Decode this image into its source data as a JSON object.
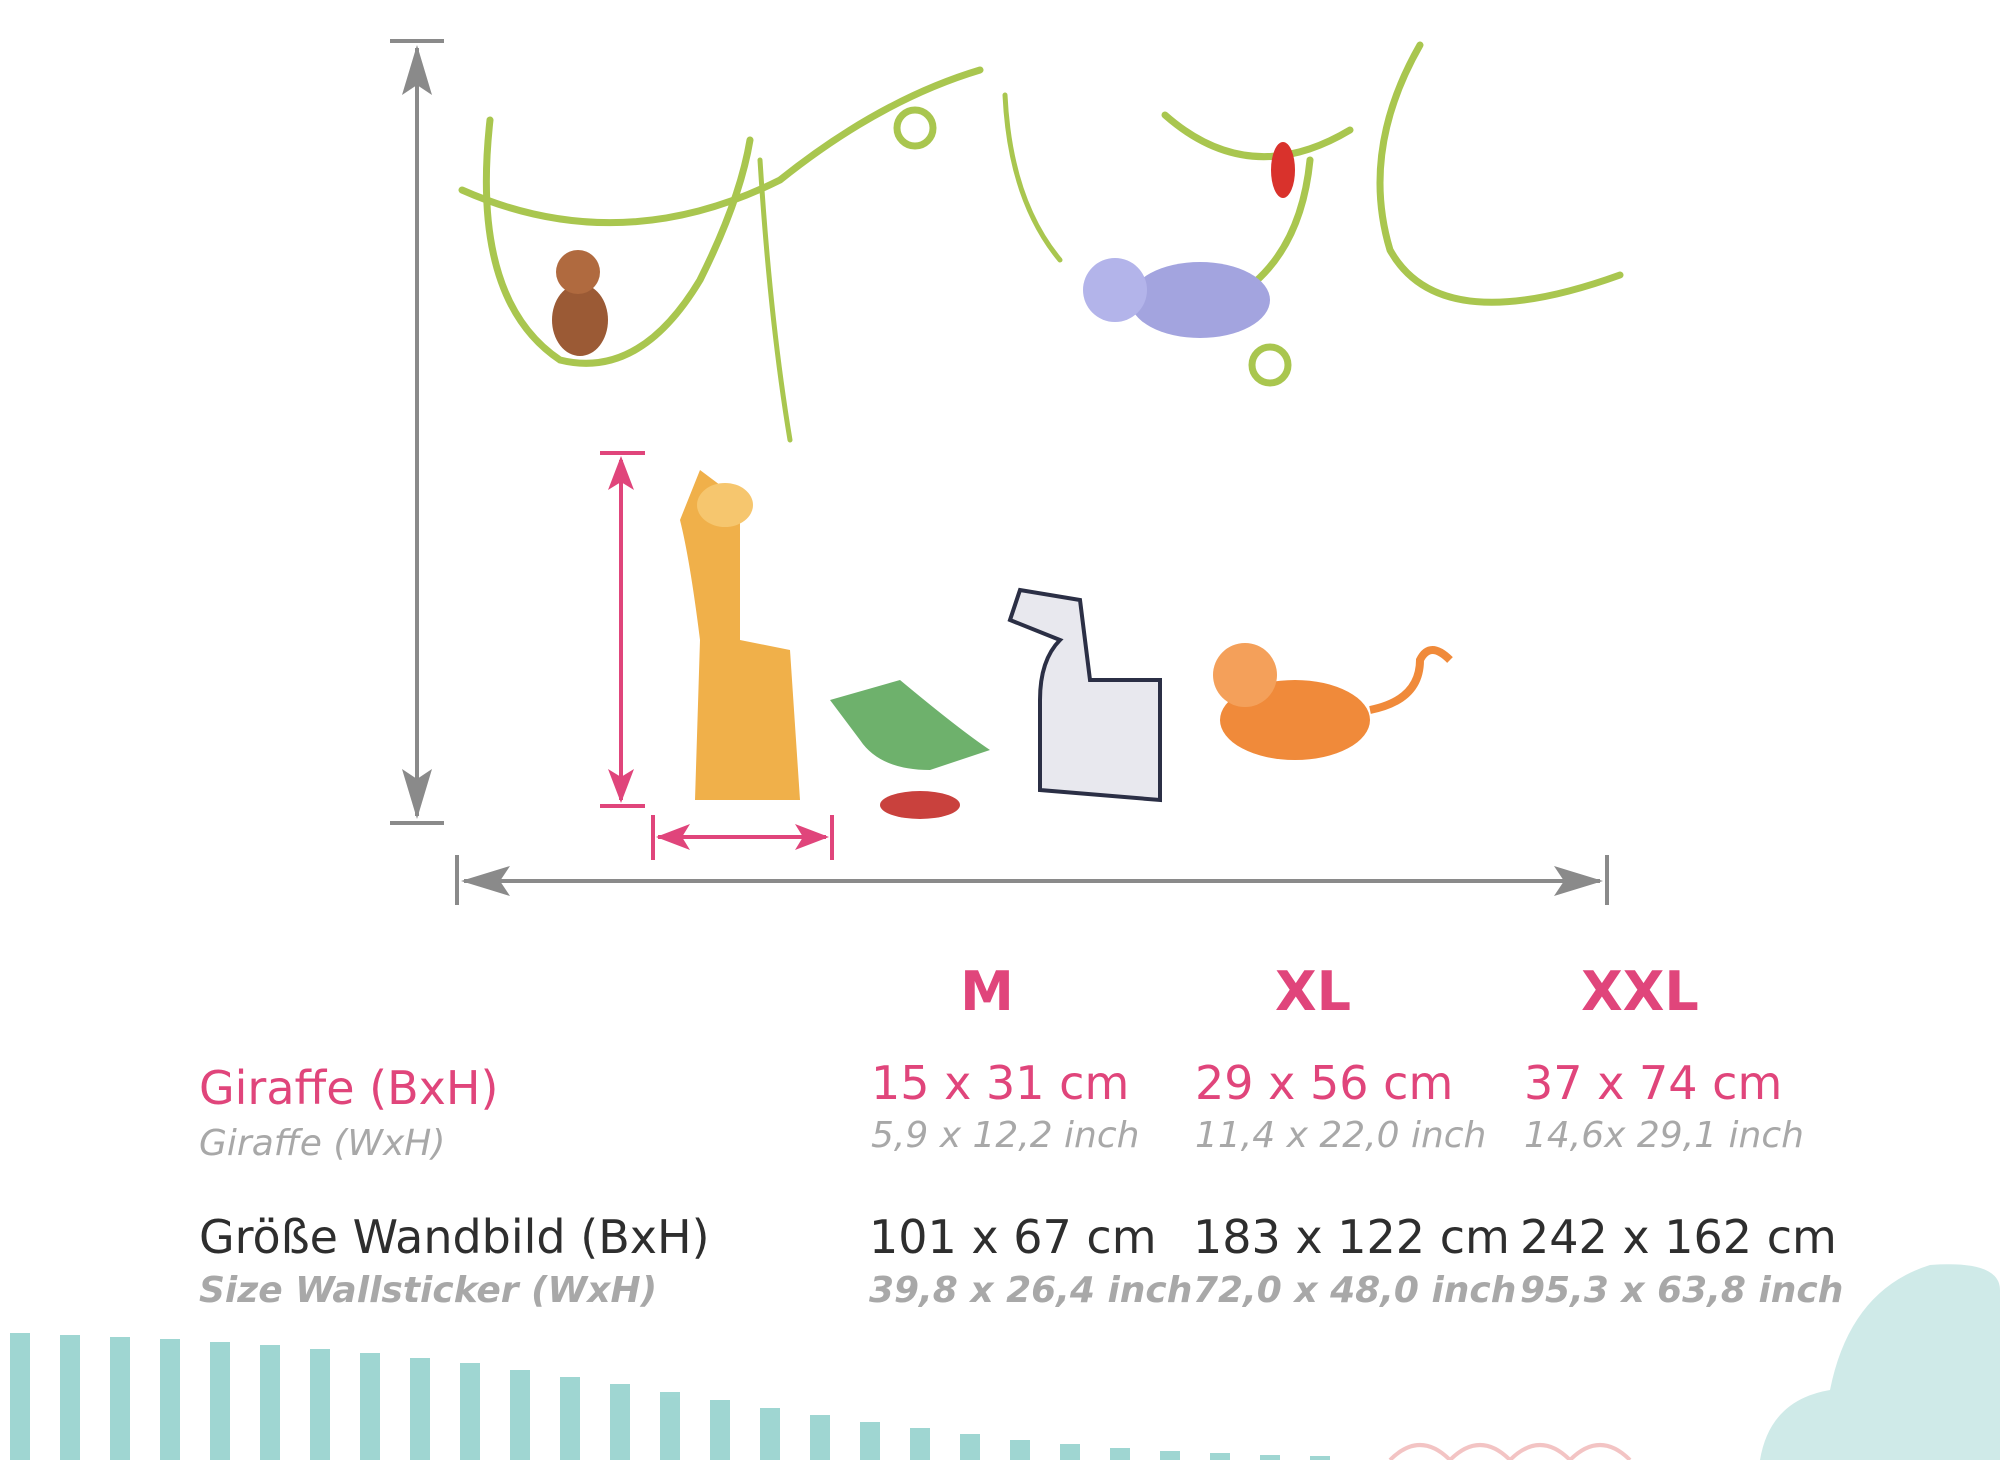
{
  "sizes": [
    "M",
    "XL",
    "XXL"
  ],
  "rows": [
    {
      "label": "Giraffe (BxH)",
      "sublabel": "Giraffe (WxH)",
      "values": [
        {
          "cm": "15 x 31 cm",
          "inch": "5,9 x 12,2 inch"
        },
        {
          "cm": "29 x 56 cm",
          "inch": "11,4 x 22,0 inch"
        },
        {
          "cm": "37 x 74 cm",
          "inch": "14,6x 29,1 inch"
        }
      ]
    },
    {
      "label": "Größe Wandbild (BxH)",
      "sublabel": "Size Wallsticker (WxH)",
      "values": [
        {
          "cm": "101 x 67 cm",
          "inch": "39,8 x 26,4 inch"
        },
        {
          "cm": "183 x 122 cm",
          "inch": "72,0 x 48,0 inch"
        },
        {
          "cm": "242 x 162 cm",
          "inch": "95,3 x 63,8 inch"
        }
      ]
    }
  ]
}
